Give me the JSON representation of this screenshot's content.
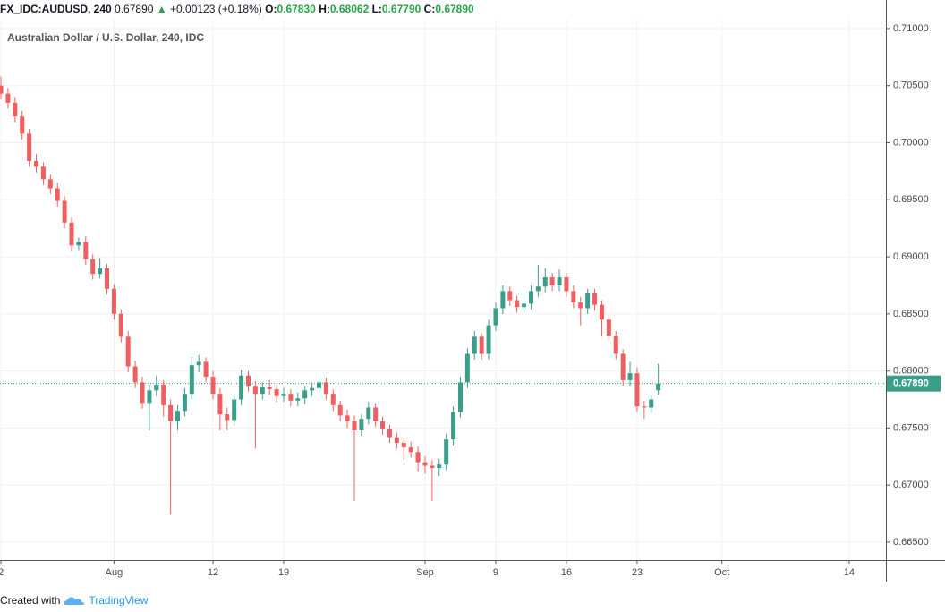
{
  "header": {
    "symbol": "FX_IDC:AUDUSD, 240",
    "price": "0.67890",
    "arrow": "▲",
    "change": "+0.00123 (+0.18%)",
    "ohlc": [
      {
        "label": "O:",
        "value": "0.67830"
      },
      {
        "label": "H:",
        "value": "0.68062"
      },
      {
        "label": "L:",
        "value": "0.67790"
      },
      {
        "label": "C:",
        "value": "0.67890"
      }
    ]
  },
  "chart_data": {
    "type": "candlestick",
    "title": "Australian Dollar / U.S. Dollar, 240, IDC",
    "up_color": "#3a9e8b",
    "down_color": "#ef5f5f",
    "grid": true,
    "open": [
      0.705,
      0.7043,
      0.7035,
      0.7023,
      0.7008,
      0.6984,
      0.6979,
      0.6968,
      0.696,
      0.6949,
      0.693,
      0.691,
      0.6913,
      0.6898,
      0.6885,
      0.689,
      0.6872,
      0.685,
      0.683,
      0.6804,
      0.679,
      0.6772,
      0.6783,
      0.6788,
      0.677,
      0.6756,
      0.6765,
      0.678,
      0.6805,
      0.6808,
      0.6795,
      0.678,
      0.6762,
      0.6757,
      0.6775,
      0.6796,
      0.6787,
      0.678,
      0.6786,
      0.6784,
      0.6778,
      0.678,
      0.6774,
      0.6776,
      0.6783,
      0.6785,
      0.679,
      0.678,
      0.677,
      0.6761,
      0.6756,
      0.6748,
      0.6758,
      0.6768,
      0.6756,
      0.6749,
      0.6742,
      0.6737,
      0.6733,
      0.6729,
      0.672,
      0.6717,
      0.6715,
      0.6718,
      0.674,
      0.6764,
      0.679,
      0.6815,
      0.683,
      0.6815,
      0.684,
      0.6855,
      0.687,
      0.6862,
      0.6856,
      0.6859,
      0.687,
      0.6874,
      0.6882,
      0.6875,
      0.6882,
      0.687,
      0.686,
      0.6855,
      0.6868,
      0.6858,
      0.6845,
      0.6831,
      0.6815,
      0.6792,
      0.6798,
      0.6769,
      0.6768,
      0.6783
    ],
    "high": [
      0.7058,
      0.7048,
      0.704,
      0.7028,
      0.7012,
      0.699,
      0.6983,
      0.6972,
      0.6965,
      0.6953,
      0.6935,
      0.6917,
      0.6918,
      0.6902,
      0.6899,
      0.6894,
      0.6876,
      0.6854,
      0.6835,
      0.6809,
      0.6795,
      0.6788,
      0.6796,
      0.6792,
      0.6775,
      0.677,
      0.6785,
      0.6812,
      0.6814,
      0.6812,
      0.68,
      0.6785,
      0.6768,
      0.678,
      0.6801,
      0.68,
      0.6791,
      0.679,
      0.6792,
      0.6788,
      0.6785,
      0.6784,
      0.6781,
      0.6787,
      0.679,
      0.6799,
      0.6794,
      0.6784,
      0.6774,
      0.6766,
      0.6761,
      0.6762,
      0.6773,
      0.6772,
      0.676,
      0.6753,
      0.6746,
      0.6742,
      0.6738,
      0.6734,
      0.6725,
      0.6722,
      0.6723,
      0.6745,
      0.6769,
      0.6795,
      0.682,
      0.6835,
      0.6833,
      0.6845,
      0.686,
      0.6875,
      0.6874,
      0.6866,
      0.6868,
      0.6875,
      0.6893,
      0.689,
      0.6886,
      0.6889,
      0.6886,
      0.6875,
      0.6865,
      0.6872,
      0.6872,
      0.6862,
      0.6849,
      0.6835,
      0.6819,
      0.6808,
      0.6803,
      0.6774,
      0.6779,
      0.68062
    ],
    "low": [
      0.7038,
      0.703,
      0.7018,
      0.7003,
      0.6979,
      0.6974,
      0.6963,
      0.6955,
      0.6944,
      0.6925,
      0.6905,
      0.6906,
      0.6893,
      0.688,
      0.6881,
      0.6867,
      0.6845,
      0.6825,
      0.6799,
      0.6785,
      0.6767,
      0.6748,
      0.6778,
      0.676,
      0.66743,
      0.6748,
      0.676,
      0.6775,
      0.6799,
      0.679,
      0.6775,
      0.6748,
      0.6748,
      0.6752,
      0.677,
      0.6782,
      0.6732,
      0.6775,
      0.6779,
      0.6773,
      0.6773,
      0.6769,
      0.6769,
      0.6771,
      0.6778,
      0.678,
      0.6775,
      0.6765,
      0.6756,
      0.675,
      0.66861,
      0.6743,
      0.6753,
      0.6751,
      0.6744,
      0.6737,
      0.6732,
      0.6722,
      0.6724,
      0.6712,
      0.671,
      0.6686,
      0.6708,
      0.6713,
      0.6735,
      0.6759,
      0.6785,
      0.681,
      0.681,
      0.681,
      0.6835,
      0.685,
      0.6857,
      0.6851,
      0.6851,
      0.6854,
      0.6865,
      0.6869,
      0.687,
      0.687,
      0.6865,
      0.6855,
      0.684,
      0.685,
      0.6853,
      0.683,
      0.6826,
      0.681,
      0.6787,
      0.6787,
      0.6764,
      0.6758,
      0.6763,
      0.6779
    ],
    "close": [
      0.7043,
      0.7035,
      0.7023,
      0.7008,
      0.6984,
      0.6979,
      0.6968,
      0.696,
      0.6949,
      0.693,
      0.691,
      0.6913,
      0.6898,
      0.6885,
      0.689,
      0.6872,
      0.685,
      0.683,
      0.6804,
      0.679,
      0.6772,
      0.6783,
      0.6788,
      0.677,
      0.6756,
      0.6765,
      0.678,
      0.6805,
      0.6808,
      0.6795,
      0.678,
      0.6762,
      0.6757,
      0.6775,
      0.6796,
      0.6787,
      0.678,
      0.6786,
      0.6784,
      0.6778,
      0.678,
      0.6774,
      0.6776,
      0.6783,
      0.6785,
      0.679,
      0.678,
      0.677,
      0.6761,
      0.6756,
      0.6748,
      0.6758,
      0.6768,
      0.6756,
      0.6749,
      0.6742,
      0.6737,
      0.6733,
      0.6729,
      0.672,
      0.6717,
      0.6715,
      0.6718,
      0.674,
      0.6764,
      0.679,
      0.6815,
      0.683,
      0.6815,
      0.684,
      0.6855,
      0.687,
      0.6862,
      0.6856,
      0.6859,
      0.687,
      0.6874,
      0.6882,
      0.6875,
      0.6882,
      0.687,
      0.686,
      0.6855,
      0.6868,
      0.6858,
      0.6845,
      0.6831,
      0.6815,
      0.6792,
      0.6798,
      0.6769,
      0.6768,
      0.6775,
      0.6789
    ],
    "last_price": {
      "value": 0.6789,
      "label": "0.67890"
    },
    "xlim": [
      -0.13,
      125.2
    ],
    "xticks": [
      {
        "value": 0,
        "label": "2"
      },
      {
        "value": 16,
        "label": "Aug"
      },
      {
        "value": 30,
        "label": "12"
      },
      {
        "value": 40,
        "label": "19"
      },
      {
        "value": 60,
        "label": "Sep"
      },
      {
        "value": 70,
        "label": "9"
      },
      {
        "value": 80,
        "label": "16"
      },
      {
        "value": 90,
        "label": "23"
      },
      {
        "value": 102,
        "label": "Oct"
      },
      {
        "value": 120,
        "label": "14"
      }
    ],
    "ylim": [
      0.66343,
      0.71078
    ],
    "yticks": [
      {
        "value": 0.665,
        "label": "0.66500"
      },
      {
        "value": 0.67,
        "label": "0.67000"
      },
      {
        "value": 0.675,
        "label": "0.67500"
      },
      {
        "value": 0.68,
        "label": "0.68000"
      },
      {
        "value": 0.685,
        "label": "0.68500"
      },
      {
        "value": 0.69,
        "label": "0.69000"
      },
      {
        "value": 0.695,
        "label": "0.69500"
      },
      {
        "value": 0.7,
        "label": "0.70000"
      },
      {
        "value": 0.705,
        "label": "0.70500"
      },
      {
        "value": 0.71,
        "label": "0.71000"
      }
    ]
  },
  "footer": {
    "created": "Created with",
    "brand": "TradingView"
  }
}
